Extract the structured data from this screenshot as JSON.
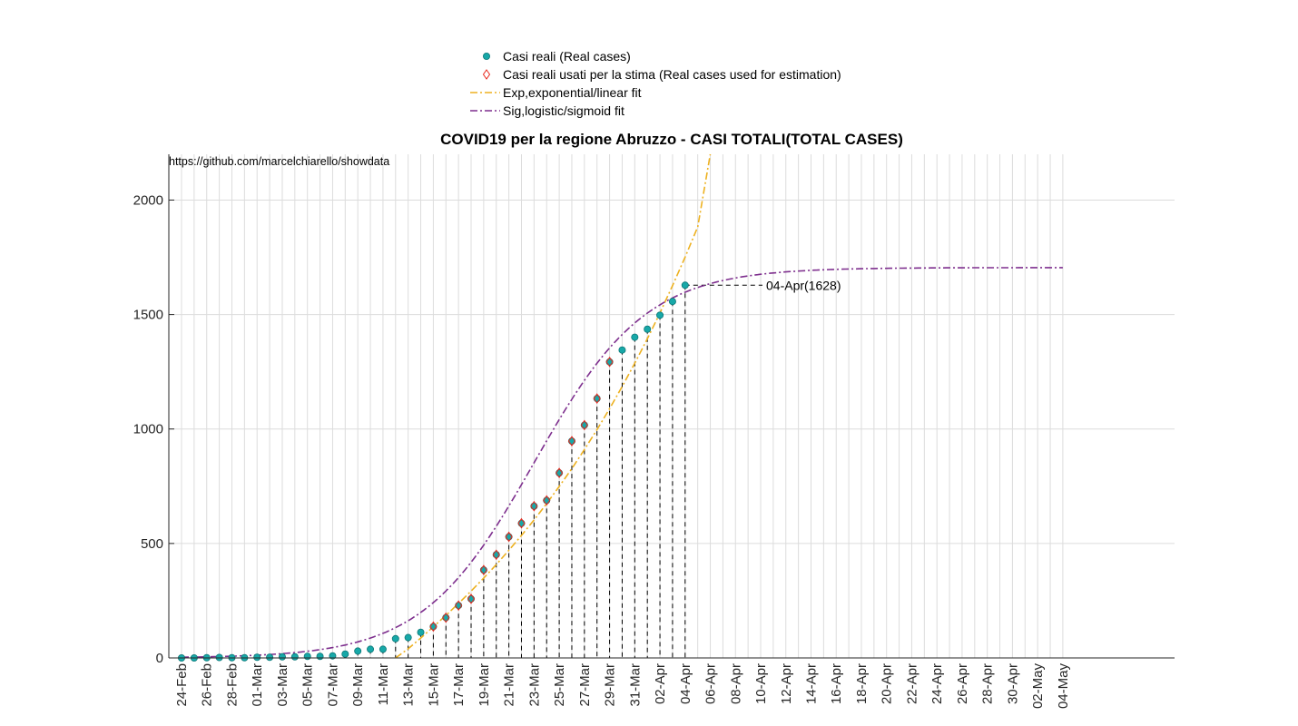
{
  "chart_data": {
    "type": "scatter",
    "title": "COVID19 per la regione Abruzzo - CASI TOTALI(TOTAL CASES)",
    "source_note": "https://github.com/marcelchiarello/showdata",
    "xlabel": "",
    "ylabel": "",
    "ylim": [
      0,
      2200
    ],
    "yticks": [
      0,
      500,
      1000,
      1500,
      2000
    ],
    "grid": true,
    "legend_position": "top-center",
    "x_tick_labels": [
      "24-Feb",
      "26-Feb",
      "28-Feb",
      "01-Mar",
      "03-Mar",
      "05-Mar",
      "07-Mar",
      "09-Mar",
      "11-Mar",
      "13-Mar",
      "15-Mar",
      "17-Mar",
      "19-Mar",
      "21-Mar",
      "23-Mar",
      "25-Mar",
      "27-Mar",
      "29-Mar",
      "31-Mar",
      "02-Apr",
      "04-Apr",
      "06-Apr",
      "08-Apr",
      "10-Apr",
      "12-Apr",
      "14-Apr",
      "16-Apr",
      "18-Apr",
      "20-Apr",
      "22-Apr",
      "24-Apr",
      "26-Apr",
      "28-Apr",
      "30-Apr",
      "02-May",
      "04-May"
    ],
    "x_start": "2020-02-24",
    "x_end": "2020-05-04",
    "series": [
      {
        "name": "Casi reali (Real cases)",
        "style": "marker",
        "color": "#17a8a8",
        "x": [
          "2020-02-24",
          "2020-02-25",
          "2020-02-26",
          "2020-02-27",
          "2020-02-28",
          "2020-02-29",
          "2020-03-01",
          "2020-03-02",
          "2020-03-03",
          "2020-03-04",
          "2020-03-05",
          "2020-03-06",
          "2020-03-07",
          "2020-03-08",
          "2020-03-09",
          "2020-03-10",
          "2020-03-11",
          "2020-03-12",
          "2020-03-13",
          "2020-03-14",
          "2020-03-15",
          "2020-03-16",
          "2020-03-17",
          "2020-03-18",
          "2020-03-19",
          "2020-03-20",
          "2020-03-21",
          "2020-03-22",
          "2020-03-23",
          "2020-03-24",
          "2020-03-25",
          "2020-03-26",
          "2020-03-27",
          "2020-03-28",
          "2020-03-29",
          "2020-03-30",
          "2020-03-31",
          "2020-04-01",
          "2020-04-02",
          "2020-04-03",
          "2020-04-04"
        ],
        "y": [
          0,
          0,
          1,
          2,
          1,
          1,
          3,
          3,
          5,
          5,
          7,
          7,
          9,
          17,
          30,
          38,
          38,
          84,
          89,
          112,
          137,
          176,
          229,
          258,
          384,
          451,
          529,
          588,
          663,
          688,
          808,
          947,
          1017,
          1133,
          1293,
          1345,
          1401,
          1436,
          1497,
          1557,
          1628
        ]
      },
      {
        "name": "Casi reali usati per la stima (Real cases used for estimation)",
        "style": "diamond",
        "color": "#e8281c",
        "x": [
          "2020-03-15",
          "2020-03-16",
          "2020-03-17",
          "2020-03-18",
          "2020-03-19",
          "2020-03-20",
          "2020-03-21",
          "2020-03-22",
          "2020-03-23",
          "2020-03-24",
          "2020-03-25",
          "2020-03-26",
          "2020-03-27",
          "2020-03-28",
          "2020-03-29"
        ],
        "y": [
          137,
          176,
          229,
          258,
          384,
          451,
          529,
          588,
          663,
          688,
          808,
          947,
          1017,
          1133,
          1293
        ]
      },
      {
        "name": "Exp,exponential/linear fit",
        "style": "dash-dot",
        "color": "#edb120",
        "x": [
          "2020-03-12",
          "2020-03-13",
          "2020-03-14",
          "2020-03-15",
          "2020-03-16",
          "2020-03-17",
          "2020-03-18",
          "2020-03-19",
          "2020-03-20",
          "2020-03-21",
          "2020-03-22",
          "2020-03-23",
          "2020-03-24",
          "2020-03-25",
          "2020-03-26",
          "2020-03-27",
          "2020-03-28",
          "2020-03-29",
          "2020-03-30",
          "2020-03-31",
          "2020-04-01",
          "2020-04-02",
          "2020-04-03",
          "2020-04-04",
          "2020-04-05",
          "2020-04-06"
        ],
        "y": [
          0,
          40,
          87,
          136,
          186,
          238,
          292,
          349,
          408,
          470,
          535,
          603,
          674,
          749,
          827,
          910,
          997,
          1089,
          1186,
          1287,
          1394,
          1507,
          1626,
          1751,
          1883,
          2200
        ]
      },
      {
        "name": "Sig,logistic/sigmoid fit",
        "style": "dash-dot",
        "color": "#7e2f8e",
        "function": "logistic",
        "L": 1705,
        "k": 0.225,
        "t0": "2020-03-23"
      }
    ],
    "annotations": [
      {
        "text": "04-Apr(1628)",
        "x": "2020-04-04",
        "y": 1628
      }
    ]
  }
}
